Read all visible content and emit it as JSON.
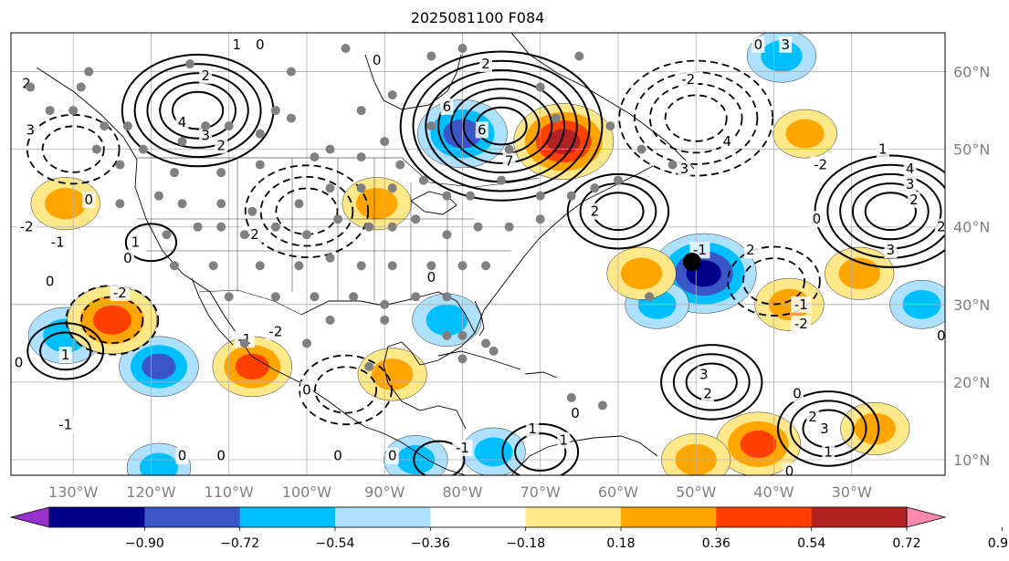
{
  "chart_data": {
    "type": "heatmap",
    "title": "2025081100 F084",
    "map_extent": {
      "lon": [
        -138,
        -18
      ],
      "lat": [
        8,
        65
      ]
    },
    "x_ticks": [
      {
        "lon": -130,
        "label": "130°W"
      },
      {
        "lon": -120,
        "label": "120°W"
      },
      {
        "lon": -110,
        "label": "110°W"
      },
      {
        "lon": -100,
        "label": "100°W"
      },
      {
        "lon": -90,
        "label": "90°W"
      },
      {
        "lon": -80,
        "label": "80°W"
      },
      {
        "lon": -70,
        "label": "70°W"
      },
      {
        "lon": -60,
        "label": "60°W"
      },
      {
        "lon": -50,
        "label": "50°W"
      },
      {
        "lon": -40,
        "label": "40°W"
      },
      {
        "lon": -30,
        "label": "30°W"
      }
    ],
    "y_ticks": [
      {
        "lat": 60,
        "label": "60°N"
      },
      {
        "lat": 50,
        "label": "50°N"
      },
      {
        "lat": 40,
        "label": "40°N"
      },
      {
        "lat": 30,
        "label": "30°N"
      },
      {
        "lat": 20,
        "label": "20°N"
      },
      {
        "lat": 10,
        "label": "10°N"
      }
    ],
    "colorbar": {
      "bounds": [
        -0.9,
        -0.72,
        -0.54,
        -0.36,
        -0.18,
        0.18,
        0.36,
        0.54,
        0.72,
        0.9
      ],
      "tick_labels": [
        "−0.90",
        "−0.72",
        "−0.54",
        "−0.36",
        "−0.18",
        "0.18",
        "0.36",
        "0.54",
        "0.72",
        "0.90"
      ],
      "colors": [
        "#9932cc",
        "#00008b",
        "#3a55c8",
        "#00bfff",
        "#aee0ff",
        "#ffffff",
        "#ffe88a",
        "#ffa500",
        "#ff4000",
        "#b22222",
        "#ff88b0"
      ],
      "extend": "both"
    },
    "positive_contours": [
      {
        "lon": -114,
        "lat": 55,
        "levels": [
          1,
          2,
          3,
          4,
          5
        ]
      },
      {
        "lon": -75,
        "lat": 53,
        "levels": [
          1,
          2,
          3,
          4,
          5,
          6,
          7
        ]
      },
      {
        "lon": -60,
        "lat": 42,
        "levels": [
          1,
          2,
          3
        ]
      },
      {
        "lon": -25,
        "lat": 42,
        "levels": [
          1,
          2,
          3,
          4,
          5
        ]
      },
      {
        "lon": -70,
        "lat": 11,
        "levels": [
          1,
          2
        ]
      },
      {
        "lon": -83,
        "lat": 10,
        "levels": [
          1
        ]
      },
      {
        "lon": -48,
        "lat": 20,
        "levels": [
          1,
          2,
          3
        ]
      },
      {
        "lon": -33,
        "lat": 14,
        "levels": [
          1,
          2,
          3
        ]
      },
      {
        "lon": -131,
        "lat": 24,
        "levels": [
          1,
          2
        ]
      },
      {
        "lon": -120,
        "lat": 38,
        "levels": [
          1
        ]
      }
    ],
    "negative_contours": [
      {
        "lon": -100,
        "lat": 42,
        "levels": [
          -1,
          -2,
          -3
        ]
      },
      {
        "lon": -50,
        "lat": 54,
        "levels": [
          -1,
          -2,
          -3,
          -4
        ]
      },
      {
        "lon": -125,
        "lat": 28,
        "levels": [
          -1,
          -2
        ]
      },
      {
        "lon": -95,
        "lat": 19,
        "levels": [
          -1,
          -2
        ]
      },
      {
        "lon": -40,
        "lat": 33,
        "levels": [
          -1,
          -2
        ]
      },
      {
        "lon": -130,
        "lat": 50,
        "levels": [
          -1,
          -2
        ]
      }
    ],
    "shaded_regions": [
      {
        "lon": -80,
        "lat": 52,
        "value": -0.65
      },
      {
        "lon": -49,
        "lat": 34,
        "value": -0.8
      },
      {
        "lon": -39,
        "lat": 62,
        "value": -0.45
      },
      {
        "lon": -86,
        "lat": 10,
        "value": -0.4
      },
      {
        "lon": -76,
        "lat": 11,
        "value": -0.4
      },
      {
        "lon": -131,
        "lat": 26,
        "value": -0.5
      },
      {
        "lon": -119,
        "lat": 22,
        "value": -0.55
      },
      {
        "lon": -119,
        "lat": 9,
        "value": -0.4
      },
      {
        "lon": -55,
        "lat": 30,
        "value": -0.4
      },
      {
        "lon": -21,
        "lat": 30,
        "value": -0.4
      },
      {
        "lon": -82,
        "lat": 28,
        "value": -0.45
      },
      {
        "lon": -67,
        "lat": 51,
        "value": 0.75
      },
      {
        "lon": -57,
        "lat": 34,
        "value": 0.45
      },
      {
        "lon": -125,
        "lat": 28,
        "value": 0.65
      },
      {
        "lon": -131,
        "lat": 43,
        "value": 0.45
      },
      {
        "lon": -107,
        "lat": 22,
        "value": 0.55
      },
      {
        "lon": -89,
        "lat": 21,
        "value": 0.45
      },
      {
        "lon": -42,
        "lat": 12,
        "value": 0.6
      },
      {
        "lon": -27,
        "lat": 14,
        "value": 0.45
      },
      {
        "lon": -29,
        "lat": 34,
        "value": 0.45
      },
      {
        "lon": -38,
        "lat": 30,
        "value": 0.45
      },
      {
        "lon": -91,
        "lat": 43,
        "value": 0.45
      },
      {
        "lon": -36,
        "lat": 52,
        "value": 0.4
      },
      {
        "lon": -50,
        "lat": 10,
        "value": 0.45
      }
    ],
    "contour_labels": [
      {
        "lon": -113,
        "lat": 59.5,
        "text": "2"
      },
      {
        "lon": -116,
        "lat": 53.5,
        "text": "4"
      },
      {
        "lon": -113,
        "lat": 51.8,
        "text": "3"
      },
      {
        "lon": -111,
        "lat": 50.5,
        "text": "2"
      },
      {
        "lon": -109,
        "lat": 63.5,
        "text": "1"
      },
      {
        "lon": -106,
        "lat": 63.5,
        "text": "0"
      },
      {
        "lon": -135.5,
        "lat": 52.5,
        "text": "3"
      },
      {
        "lon": -136,
        "lat": 58.5,
        "text": "2"
      },
      {
        "lon": -128,
        "lat": 43.5,
        "text": "0"
      },
      {
        "lon": -136,
        "lat": 40,
        "text": "-2"
      },
      {
        "lon": -132,
        "lat": 38,
        "text": "-1"
      },
      {
        "lon": -122,
        "lat": 38,
        "text": "1"
      },
      {
        "lon": -123,
        "lat": 36,
        "text": "0"
      },
      {
        "lon": -107,
        "lat": 39,
        "text": "-2"
      },
      {
        "lon": -133,
        "lat": 33,
        "text": "0"
      },
      {
        "lon": -124,
        "lat": 31.5,
        "text": "-2"
      },
      {
        "lon": -131,
        "lat": 23.5,
        "text": "1"
      },
      {
        "lon": -137,
        "lat": 22.5,
        "text": "0"
      },
      {
        "lon": -131,
        "lat": 14.5,
        "text": "-1"
      },
      {
        "lon": -108,
        "lat": 25.5,
        "text": "-1"
      },
      {
        "lon": -104,
        "lat": 26.5,
        "text": "-2"
      },
      {
        "lon": -100,
        "lat": 19,
        "text": "0"
      },
      {
        "lon": -116,
        "lat": 10.5,
        "text": "0"
      },
      {
        "lon": -111,
        "lat": 10.5,
        "text": "0"
      },
      {
        "lon": -96,
        "lat": 10.5,
        "text": "0"
      },
      {
        "lon": -89,
        "lat": 10.5,
        "text": "0"
      },
      {
        "lon": -80,
        "lat": 11.5,
        "text": "-1"
      },
      {
        "lon": -71,
        "lat": 14,
        "text": "1"
      },
      {
        "lon": -67,
        "lat": 12.5,
        "text": "1"
      },
      {
        "lon": -65.5,
        "lat": 16,
        "text": "0"
      },
      {
        "lon": -74,
        "lat": 48.5,
        "text": "7"
      },
      {
        "lon": -77.5,
        "lat": 52.5,
        "text": "6"
      },
      {
        "lon": -82,
        "lat": 55.5,
        "text": "6"
      },
      {
        "lon": -77,
        "lat": 61,
        "text": "2"
      },
      {
        "lon": -63,
        "lat": 42,
        "text": "2"
      },
      {
        "lon": -51.5,
        "lat": 47.5,
        "text": "3"
      },
      {
        "lon": -46,
        "lat": 51,
        "text": "4"
      },
      {
        "lon": -51,
        "lat": 59,
        "text": "-2"
      },
      {
        "lon": -42,
        "lat": 63.5,
        "text": "0"
      },
      {
        "lon": -38.5,
        "lat": 63.5,
        "text": "3"
      },
      {
        "lon": -49.5,
        "lat": 37,
        "text": "-1"
      },
      {
        "lon": -43,
        "lat": 37,
        "text": "2"
      },
      {
        "lon": -34,
        "lat": 48,
        "text": "-2"
      },
      {
        "lon": -34.5,
        "lat": 41,
        "text": "0"
      },
      {
        "lon": -22.5,
        "lat": 47.5,
        "text": "4"
      },
      {
        "lon": -22.5,
        "lat": 45.5,
        "text": "3"
      },
      {
        "lon": -22,
        "lat": 43.5,
        "text": "2"
      },
      {
        "lon": -26,
        "lat": 50,
        "text": "1"
      },
      {
        "lon": -25,
        "lat": 37,
        "text": "3"
      },
      {
        "lon": -36.5,
        "lat": 30,
        "text": "-1"
      },
      {
        "lon": -36.5,
        "lat": 27.5,
        "text": "-2"
      },
      {
        "lon": -49,
        "lat": 21,
        "text": "3"
      },
      {
        "lon": -48.5,
        "lat": 18.5,
        "text": "2"
      },
      {
        "lon": -35,
        "lat": 15.5,
        "text": "2"
      },
      {
        "lon": -33.5,
        "lat": 14,
        "text": "3"
      },
      {
        "lon": -33,
        "lat": 11,
        "text": "1"
      },
      {
        "lon": -37,
        "lat": 18.5,
        "text": "0"
      },
      {
        "lon": -38,
        "lat": 8.5,
        "text": "0"
      },
      {
        "lon": -18.5,
        "lat": 26,
        "text": "0"
      },
      {
        "lon": -18.5,
        "lat": 40,
        "text": "2"
      },
      {
        "lon": -84,
        "lat": 33.5,
        "text": "0"
      },
      {
        "lon": -91,
        "lat": 61.5,
        "text": "0"
      }
    ],
    "station_markers": [
      {
        "lon": -135.5,
        "lat": 58
      },
      {
        "lon": -129,
        "lat": 58
      },
      {
        "lon": -133,
        "lat": 55
      },
      {
        "lon": -130,
        "lat": 55
      },
      {
        "lon": -126,
        "lat": 53
      },
      {
        "lon": -123,
        "lat": 53
      },
      {
        "lon": -121,
        "lat": 50
      },
      {
        "lon": -127,
        "lat": 50
      },
      {
        "lon": -124,
        "lat": 48
      },
      {
        "lon": -116,
        "lat": 51
      },
      {
        "lon": -113,
        "lat": 53
      },
      {
        "lon": -110,
        "lat": 53
      },
      {
        "lon": -106,
        "lat": 52
      },
      {
        "lon": -104,
        "lat": 55
      },
      {
        "lon": -102,
        "lat": 54
      },
      {
        "lon": -117,
        "lat": 47
      },
      {
        "lon": -111,
        "lat": 47
      },
      {
        "lon": -106,
        "lat": 48
      },
      {
        "lon": -99,
        "lat": 49
      },
      {
        "lon": -97,
        "lat": 50
      },
      {
        "lon": -93,
        "lat": 49
      },
      {
        "lon": -90,
        "lat": 51
      },
      {
        "lon": -93,
        "lat": 55
      },
      {
        "lon": -84,
        "lat": 53
      },
      {
        "lon": -124,
        "lat": 43
      },
      {
        "lon": -119,
        "lat": 44
      },
      {
        "lon": -116,
        "lat": 43
      },
      {
        "lon": -111,
        "lat": 43
      },
      {
        "lon": -107,
        "lat": 42
      },
      {
        "lon": -101,
        "lat": 43
      },
      {
        "lon": -97,
        "lat": 45
      },
      {
        "lon": -93,
        "lat": 45
      },
      {
        "lon": -89,
        "lat": 45
      },
      {
        "lon": -85,
        "lat": 46
      },
      {
        "lon": -82,
        "lat": 44
      },
      {
        "lon": -79,
        "lat": 44
      },
      {
        "lon": -75,
        "lat": 46
      },
      {
        "lon": -70,
        "lat": 44
      },
      {
        "lon": -66,
        "lat": 44
      },
      {
        "lon": -63,
        "lat": 45
      },
      {
        "lon": -60,
        "lat": 46
      },
      {
        "lon": -118,
        "lat": 39
      },
      {
        "lon": -114,
        "lat": 40
      },
      {
        "lon": -111,
        "lat": 40
      },
      {
        "lon": -108,
        "lat": 39
      },
      {
        "lon": -104,
        "lat": 40
      },
      {
        "lon": -100,
        "lat": 39
      },
      {
        "lon": -96,
        "lat": 41
      },
      {
        "lon": -92,
        "lat": 40
      },
      {
        "lon": -89,
        "lat": 40
      },
      {
        "lon": -86,
        "lat": 41
      },
      {
        "lon": -82,
        "lat": 39
      },
      {
        "lon": -78,
        "lat": 40
      },
      {
        "lon": -74,
        "lat": 40
      },
      {
        "lon": -70,
        "lat": 41
      },
      {
        "lon": -117,
        "lat": 35
      },
      {
        "lon": -112,
        "lat": 35
      },
      {
        "lon": -106,
        "lat": 35
      },
      {
        "lon": -101,
        "lat": 35
      },
      {
        "lon": -97,
        "lat": 36
      },
      {
        "lon": -93,
        "lat": 35
      },
      {
        "lon": -89,
        "lat": 35
      },
      {
        "lon": -84,
        "lat": 35
      },
      {
        "lon": -80,
        "lat": 35
      },
      {
        "lon": -77,
        "lat": 35
      },
      {
        "lon": -110,
        "lat": 31
      },
      {
        "lon": -104,
        "lat": 31
      },
      {
        "lon": -99,
        "lat": 31
      },
      {
        "lon": -94,
        "lat": 31
      },
      {
        "lon": -90,
        "lat": 30
      },
      {
        "lon": -86,
        "lat": 31
      },
      {
        "lon": -82,
        "lat": 31
      },
      {
        "lon": -97,
        "lat": 28
      },
      {
        "lon": -90,
        "lat": 28
      },
      {
        "lon": -82,
        "lat": 26
      },
      {
        "lon": -80,
        "lat": 26
      },
      {
        "lon": -77,
        "lat": 25
      },
      {
        "lon": -108,
        "lat": 25
      },
      {
        "lon": -100,
        "lat": 25
      },
      {
        "lon": -92,
        "lat": 22
      },
      {
        "lon": -80,
        "lat": 23
      },
      {
        "lon": -76,
        "lat": 24
      },
      {
        "lon": -66,
        "lat": 18
      },
      {
        "lon": -62,
        "lat": 17
      },
      {
        "lon": -56,
        "lat": 31
      },
      {
        "lon": -53,
        "lat": 48
      },
      {
        "lon": -57,
        "lat": 50
      },
      {
        "lon": -65,
        "lat": 62
      },
      {
        "lon": -70,
        "lat": 58
      },
      {
        "lon": -68,
        "lat": 54
      },
      {
        "lon": -61,
        "lat": 53
      },
      {
        "lon": -80,
        "lat": 63
      },
      {
        "lon": -95,
        "lat": 63
      },
      {
        "lon": -102,
        "lat": 60
      },
      {
        "lon": -115,
        "lat": 61
      },
      {
        "lon": -128,
        "lat": 60
      },
      {
        "lon": -84,
        "lat": 62
      },
      {
        "lon": -89,
        "lat": 57
      },
      {
        "lon": -74,
        "lat": 50
      },
      {
        "lon": -88,
        "lat": 48
      }
    ],
    "storm_marker": {
      "lon": -50.5,
      "lat": 35.5
    }
  }
}
